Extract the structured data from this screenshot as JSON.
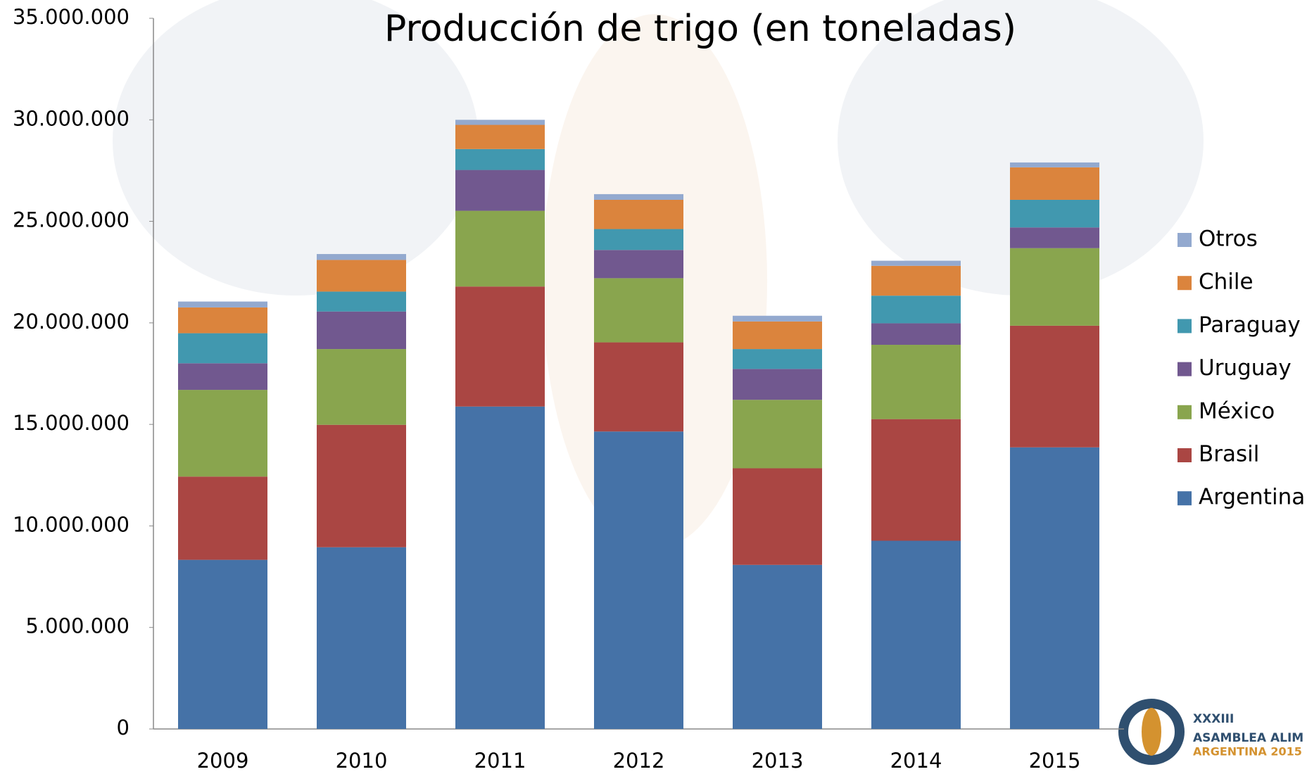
{
  "chart_data": {
    "type": "stacked_bar",
    "title": "Producción de trigo (en toneladas)",
    "categories": [
      "2009",
      "2010",
      "2011",
      "2012",
      "2013",
      "2014",
      "2015"
    ],
    "series": [
      {
        "name": "Argentina",
        "color": "#4572a7",
        "values": [
          8330000,
          8950000,
          15880000,
          14650000,
          8080000,
          9270000,
          13870000
        ]
      },
      {
        "name": "Brasil",
        "color": "#aa4643",
        "values": [
          4100000,
          6030000,
          5910000,
          4390000,
          4760000,
          5990000,
          5990000
        ]
      },
      {
        "name": "México",
        "color": "#89a54e",
        "values": [
          4270000,
          3730000,
          3730000,
          3160000,
          3370000,
          3660000,
          3820000
        ]
      },
      {
        "name": "Uruguay",
        "color": "#71588f",
        "values": [
          1310000,
          1850000,
          2010000,
          1390000,
          1520000,
          1060000,
          1020000
        ]
      },
      {
        "name": "Paraguay",
        "color": "#4198af",
        "values": [
          1480000,
          980000,
          1030000,
          1030000,
          980000,
          1360000,
          1360000
        ]
      },
      {
        "name": "Chile",
        "color": "#db843d",
        "values": [
          1270000,
          1560000,
          1190000,
          1440000,
          1360000,
          1470000,
          1600000
        ]
      },
      {
        "name": "Otros",
        "color": "#93a9cf",
        "values": [
          290000,
          290000,
          250000,
          280000,
          280000,
          250000,
          240000
        ]
      }
    ],
    "ylim": [
      0,
      35000000
    ],
    "yticks": [
      0,
      {
        "value": 5000000,
        "label": "5.000.000"
      },
      {
        "value": 10000000,
        "label": "10.000.000"
      },
      {
        "value": 15000000,
        "label": "15.000.000"
      },
      {
        "value": 20000000,
        "label": "20.000.000"
      },
      {
        "value": 25000000,
        "label": "25.000.000"
      },
      {
        "value": 30000000,
        "label": "30.000.000"
      },
      {
        "value": 35000000,
        "label": "35.000.000"
      }
    ],
    "legend": "right",
    "logo": [
      "XXXIII",
      "ASAMBLEA ALIM",
      "ARGENTINA 2015"
    ]
  }
}
